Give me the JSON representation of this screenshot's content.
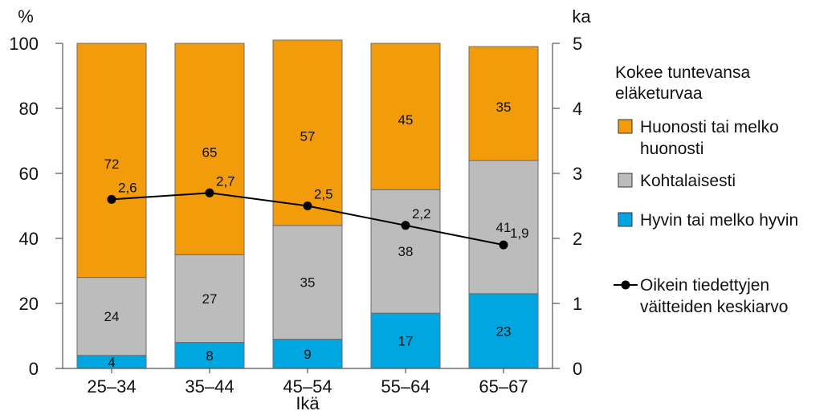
{
  "chart_data": {
    "type": "bar",
    "stacked": true,
    "categories": [
      "25–34",
      "35–44",
      "45–54",
      "55–64",
      "65–67"
    ],
    "series": [
      {
        "name": "Hyvin tai melko hyvin",
        "values": [
          4,
          8,
          9,
          17,
          23
        ],
        "color": "#00a6e0"
      },
      {
        "name": "Kohtalaisesti",
        "values": [
          24,
          27,
          35,
          38,
          41
        ],
        "color": "#bdbcbc"
      },
      {
        "name": "Huonosti tai melko huonosti",
        "values": [
          72,
          65,
          57,
          45,
          35
        ],
        "color": "#f29c0c"
      }
    ],
    "line_series": {
      "name": "Oikein tiedettyjen väitteiden keskiarvo",
      "values": [
        2.6,
        2.7,
        2.5,
        2.2,
        1.9
      ],
      "labels": [
        "2,6",
        "2,7",
        "2,5",
        "2,2",
        "1,9"
      ],
      "axis": "right",
      "color": "#000000"
    },
    "xlabel": "Ikä",
    "ylabel_left": "%",
    "ylabel_right": "ka",
    "ylim_left": [
      0,
      100
    ],
    "ylim_right": [
      0,
      5
    ],
    "yticks_left": [
      "0",
      "20",
      "40",
      "60",
      "80",
      "100"
    ],
    "yticks_right": [
      "0",
      "1",
      "2",
      "3",
      "4",
      "5"
    ],
    "legend": {
      "title_lines": [
        "Kokee tuntevansa",
        "eläketurvaa"
      ],
      "entries": [
        {
          "lines": [
            "Huonosti tai melko",
            "huonosti"
          ],
          "color": "#f29c0c",
          "kind": "box"
        },
        {
          "lines": [
            "Kohtalaisesti"
          ],
          "color": "#bdbcbc",
          "kind": "box"
        },
        {
          "lines": [
            "Hyvin tai melko hyvin"
          ],
          "color": "#00a6e0",
          "kind": "box"
        },
        {
          "lines": [
            "Oikein tiedettyjen",
            "väitteiden keskiarvo"
          ],
          "color": "#000000",
          "kind": "line"
        }
      ],
      "placement": "right"
    },
    "grid": false
  }
}
